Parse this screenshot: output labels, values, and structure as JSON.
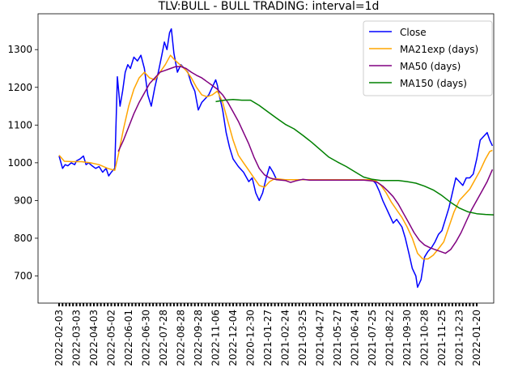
{
  "chart_data": {
    "type": "line",
    "title": "TLV:BULL - BULL TRADING: interval=1d",
    "xlabel": "",
    "ylabel": "",
    "x_tick_labels": [
      "2022-02-03",
      "2022-03-03",
      "2022-04-03",
      "2022-05-02",
      "2022-06-01",
      "2022-06-30",
      "2022-07-28",
      "2022-08-28",
      "2022-09-28",
      "2022-11-06",
      "2022-12-04",
      "2020-12-30",
      "2021-01-27",
      "2021-02-24",
      "2021-03-25",
      "2021-04-27",
      "2021-05-27",
      "2021-06-24",
      "2021-07-25",
      "2021-08-22",
      "2021-09-30",
      "2021-10-28",
      "2021-11-25",
      "2021-12-23",
      "2022-01-20"
    ],
    "y_ticks": [
      700,
      800,
      900,
      1000,
      1100,
      1200,
      1300
    ],
    "ylim": [
      628,
      1395
    ],
    "grid": false,
    "legend_position": "top-right",
    "series": [
      {
        "name": "Close",
        "color": "#0000ff",
        "points": [
          [
            0.0,
            1018
          ],
          [
            0.2,
            985
          ],
          [
            0.35,
            995
          ],
          [
            0.5,
            992
          ],
          [
            0.7,
            1000
          ],
          [
            0.9,
            995
          ],
          [
            1.0,
            1005
          ],
          [
            1.2,
            1010
          ],
          [
            1.4,
            1018
          ],
          [
            1.55,
            995
          ],
          [
            1.7,
            1000
          ],
          [
            1.9,
            992
          ],
          [
            2.1,
            985
          ],
          [
            2.3,
            990
          ],
          [
            2.5,
            975
          ],
          [
            2.7,
            985
          ],
          [
            2.85,
            965
          ],
          [
            3.0,
            975
          ],
          [
            3.2,
            985
          ],
          [
            3.35,
            1228
          ],
          [
            3.5,
            1150
          ],
          [
            3.65,
            1190
          ],
          [
            3.8,
            1240
          ],
          [
            3.95,
            1260
          ],
          [
            4.1,
            1250
          ],
          [
            4.3,
            1280
          ],
          [
            4.5,
            1270
          ],
          [
            4.7,
            1285
          ],
          [
            4.9,
            1250
          ],
          [
            5.1,
            1180
          ],
          [
            5.3,
            1150
          ],
          [
            5.5,
            1200
          ],
          [
            5.7,
            1240
          ],
          [
            5.9,
            1285
          ],
          [
            6.05,
            1320
          ],
          [
            6.2,
            1300
          ],
          [
            6.35,
            1345
          ],
          [
            6.45,
            1355
          ],
          [
            6.6,
            1290
          ],
          [
            6.8,
            1240
          ],
          [
            7.0,
            1260
          ],
          [
            7.2,
            1250
          ],
          [
            7.4,
            1240
          ],
          [
            7.6,
            1210
          ],
          [
            7.8,
            1190
          ],
          [
            8.0,
            1140
          ],
          [
            8.2,
            1160
          ],
          [
            8.4,
            1170
          ],
          [
            8.6,
            1180
          ],
          [
            8.8,
            1200
          ],
          [
            9.0,
            1220
          ],
          [
            9.1,
            1205
          ],
          [
            9.2,
            1180
          ],
          [
            9.4,
            1140
          ],
          [
            9.6,
            1080
          ],
          [
            9.8,
            1040
          ],
          [
            10.0,
            1010
          ],
          [
            10.3,
            990
          ],
          [
            10.6,
            975
          ],
          [
            10.9,
            950
          ],
          [
            11.1,
            960
          ],
          [
            11.3,
            920
          ],
          [
            11.5,
            900
          ],
          [
            11.7,
            920
          ],
          [
            11.9,
            960
          ],
          [
            12.1,
            990
          ],
          [
            12.3,
            975
          ],
          [
            12.5,
            955
          ],
          [
            13.0,
            955
          ],
          [
            14.0,
            955
          ],
          [
            15.0,
            955
          ],
          [
            16.0,
            955
          ],
          [
            17.0,
            955
          ],
          [
            17.5,
            955
          ],
          [
            18.0,
            955
          ],
          [
            18.2,
            945
          ],
          [
            18.4,
            925
          ],
          [
            18.6,
            900
          ],
          [
            18.8,
            880
          ],
          [
            19.0,
            860
          ],
          [
            19.2,
            840
          ],
          [
            19.4,
            850
          ],
          [
            19.7,
            830
          ],
          [
            19.9,
            800
          ],
          [
            20.1,
            760
          ],
          [
            20.3,
            720
          ],
          [
            20.5,
            700
          ],
          [
            20.6,
            670
          ],
          [
            20.8,
            690
          ],
          [
            21.0,
            750
          ],
          [
            21.2,
            765
          ],
          [
            21.4,
            775
          ],
          [
            21.6,
            790
          ],
          [
            21.8,
            810
          ],
          [
            22.0,
            820
          ],
          [
            22.2,
            850
          ],
          [
            22.4,
            880
          ],
          [
            22.6,
            920
          ],
          [
            22.8,
            960
          ],
          [
            23.0,
            950
          ],
          [
            23.2,
            940
          ],
          [
            23.4,
            960
          ],
          [
            23.6,
            960
          ],
          [
            23.8,
            970
          ],
          [
            24.0,
            1010
          ],
          [
            24.2,
            1060
          ],
          [
            24.4,
            1070
          ],
          [
            24.6,
            1080
          ],
          [
            24.75,
            1060
          ],
          [
            24.9,
            1045
          ]
        ]
      },
      {
        "name": "MA21exp (days)",
        "color": "#ffa500",
        "points": [
          [
            0.0,
            1020
          ],
          [
            0.3,
            1004
          ],
          [
            0.8,
            1003
          ],
          [
            1.3,
            1003
          ],
          [
            1.8,
            1000
          ],
          [
            2.3,
            995
          ],
          [
            2.8,
            985
          ],
          [
            3.2,
            980
          ],
          [
            3.4,
            1020
          ],
          [
            3.7,
            1090
          ],
          [
            4.0,
            1150
          ],
          [
            4.3,
            1195
          ],
          [
            4.6,
            1225
          ],
          [
            4.9,
            1240
          ],
          [
            5.2,
            1225
          ],
          [
            5.5,
            1220
          ],
          [
            5.8,
            1240
          ],
          [
            6.1,
            1260
          ],
          [
            6.4,
            1285
          ],
          [
            6.7,
            1270
          ],
          [
            7.0,
            1258
          ],
          [
            7.3,
            1245
          ],
          [
            7.6,
            1225
          ],
          [
            7.9,
            1200
          ],
          [
            8.2,
            1180
          ],
          [
            8.5,
            1175
          ],
          [
            8.8,
            1180
          ],
          [
            9.1,
            1190
          ],
          [
            9.4,
            1160
          ],
          [
            9.7,
            1110
          ],
          [
            10.0,
            1060
          ],
          [
            10.3,
            1020
          ],
          [
            10.6,
            1000
          ],
          [
            10.9,
            980
          ],
          [
            11.2,
            960
          ],
          [
            11.5,
            940
          ],
          [
            11.8,
            935
          ],
          [
            12.1,
            950
          ],
          [
            12.4,
            958
          ],
          [
            13.0,
            955
          ],
          [
            14.0,
            955
          ],
          [
            15.0,
            955
          ],
          [
            16.0,
            955
          ],
          [
            17.0,
            955
          ],
          [
            17.5,
            955
          ],
          [
            18.0,
            955
          ],
          [
            18.2,
            952
          ],
          [
            18.5,
            940
          ],
          [
            18.8,
            920
          ],
          [
            19.1,
            895
          ],
          [
            19.4,
            875
          ],
          [
            19.7,
            855
          ],
          [
            20.0,
            830
          ],
          [
            20.3,
            800
          ],
          [
            20.6,
            760
          ],
          [
            20.9,
            745
          ],
          [
            21.2,
            745
          ],
          [
            21.5,
            755
          ],
          [
            21.8,
            772
          ],
          [
            22.1,
            790
          ],
          [
            22.4,
            830
          ],
          [
            22.7,
            870
          ],
          [
            23.0,
            900
          ],
          [
            23.3,
            915
          ],
          [
            23.6,
            930
          ],
          [
            23.9,
            955
          ],
          [
            24.2,
            980
          ],
          [
            24.5,
            1010
          ],
          [
            24.75,
            1030
          ],
          [
            24.9,
            1033
          ]
        ]
      },
      {
        "name": "MA50 (days)",
        "color": "#800080",
        "points": [
          [
            3.4,
            1030
          ],
          [
            3.7,
            1060
          ],
          [
            4.0,
            1095
          ],
          [
            4.3,
            1130
          ],
          [
            4.6,
            1160
          ],
          [
            4.9,
            1185
          ],
          [
            5.2,
            1210
          ],
          [
            5.5,
            1225
          ],
          [
            5.8,
            1240
          ],
          [
            6.1,
            1245
          ],
          [
            6.4,
            1250
          ],
          [
            6.7,
            1255
          ],
          [
            7.0,
            1255
          ],
          [
            7.3,
            1250
          ],
          [
            7.6,
            1240
          ],
          [
            7.9,
            1232
          ],
          [
            8.2,
            1225
          ],
          [
            8.5,
            1215
          ],
          [
            8.8,
            1205
          ],
          [
            9.1,
            1195
          ],
          [
            9.4,
            1180
          ],
          [
            9.7,
            1160
          ],
          [
            10.0,
            1135
          ],
          [
            10.3,
            1110
          ],
          [
            10.6,
            1080
          ],
          [
            10.9,
            1050
          ],
          [
            11.2,
            1015
          ],
          [
            11.5,
            985
          ],
          [
            11.8,
            968
          ],
          [
            12.1,
            960
          ],
          [
            12.5,
            955
          ],
          [
            13.0,
            953
          ],
          [
            13.3,
            948
          ],
          [
            13.6,
            952
          ],
          [
            14.0,
            956
          ],
          [
            14.4,
            954
          ],
          [
            15.0,
            954
          ],
          [
            16.0,
            954
          ],
          [
            17.0,
            954
          ],
          [
            17.5,
            954
          ],
          [
            18.0,
            952
          ],
          [
            18.3,
            948
          ],
          [
            18.6,
            938
          ],
          [
            18.9,
            925
          ],
          [
            19.2,
            910
          ],
          [
            19.5,
            890
          ],
          [
            19.8,
            865
          ],
          [
            20.1,
            840
          ],
          [
            20.4,
            815
          ],
          [
            20.7,
            795
          ],
          [
            21.0,
            782
          ],
          [
            21.3,
            775
          ],
          [
            21.6,
            770
          ],
          [
            21.9,
            765
          ],
          [
            22.2,
            760
          ],
          [
            22.5,
            770
          ],
          [
            22.8,
            790
          ],
          [
            23.1,
            815
          ],
          [
            23.4,
            845
          ],
          [
            23.7,
            875
          ],
          [
            24.0,
            900
          ],
          [
            24.3,
            925
          ],
          [
            24.6,
            950
          ],
          [
            24.9,
            982
          ]
        ]
      },
      {
        "name": "MA150 (days)",
        "color": "#008000",
        "points": [
          [
            9.0,
            1162
          ],
          [
            9.5,
            1166
          ],
          [
            10.0,
            1168
          ],
          [
            10.5,
            1166
          ],
          [
            11.0,
            1166
          ],
          [
            11.5,
            1152
          ],
          [
            12.0,
            1135
          ],
          [
            12.5,
            1118
          ],
          [
            13.0,
            1102
          ],
          [
            13.5,
            1090
          ],
          [
            14.0,
            1073
          ],
          [
            14.5,
            1055
          ],
          [
            15.0,
            1035
          ],
          [
            15.5,
            1015
          ],
          [
            16.0,
            1002
          ],
          [
            16.5,
            990
          ],
          [
            17.0,
            976
          ],
          [
            17.5,
            962
          ],
          [
            18.0,
            956
          ],
          [
            18.5,
            953
          ],
          [
            19.0,
            953
          ],
          [
            19.5,
            953
          ],
          [
            20.0,
            950
          ],
          [
            20.5,
            946
          ],
          [
            21.0,
            938
          ],
          [
            21.5,
            928
          ],
          [
            22.0,
            913
          ],
          [
            22.5,
            895
          ],
          [
            23.0,
            880
          ],
          [
            23.5,
            870
          ],
          [
            24.0,
            865
          ],
          [
            24.5,
            863
          ],
          [
            25.0,
            862
          ],
          [
            25.5,
            863
          ],
          [
            26.0,
            866
          ],
          [
            26.5,
            873
          ]
        ]
      }
    ]
  }
}
